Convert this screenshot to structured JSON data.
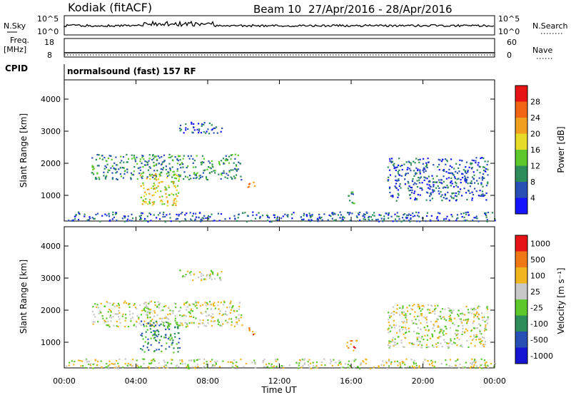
{
  "header": {
    "station": "Kodiak (fitACF)",
    "beam": "Beam 10",
    "dates": "27/Apr/2016 - 28/Apr/2016"
  },
  "summary": {
    "nsky_label": "N.Sky",
    "nsky_ticks": [
      "10^5",
      "10^0"
    ],
    "nsearch_label": "N.Search",
    "nsearch_ticks": [
      "10^5",
      "10^0"
    ],
    "freq_label_1": "Freq.",
    "freq_label_2": "[MHz]",
    "freq_ticks": [
      "18",
      "8"
    ],
    "nave_label": "Nave",
    "nave_ticks": [
      "60",
      "0"
    ],
    "cpid_label": "CPID",
    "cpid_value": "normalsound (fast) 157 RF"
  },
  "chart_data": [
    {
      "type": "heatmap",
      "parameter": "power",
      "ylabel": "Slant Range [km]",
      "yticks": [
        1000,
        2000,
        3000,
        4000
      ],
      "ylim": [
        200,
        4600
      ],
      "xticks": [
        "00:00",
        "04:00",
        "08:00",
        "12:00",
        "16:00",
        "20:00",
        "00:00"
      ],
      "xlim_hours": [
        0,
        24
      ],
      "colorbar_label": "Power [dB]",
      "colorbar_ticks": [
        "4",
        "8",
        "12",
        "16",
        "20",
        "24",
        "28"
      ],
      "colors": [
        "#1414ff",
        "#2850b4",
        "#2c8c5a",
        "#5cc82c",
        "#e6dc28",
        "#f0a01e",
        "#f06414",
        "#e61414"
      ],
      "regions": [
        {
          "t": [
            1.5,
            9.9
          ],
          "range": [
            1500,
            2300
          ],
          "level": 2,
          "note": "main band"
        },
        {
          "t": [
            4.2,
            6.4
          ],
          "range": [
            700,
            1700
          ],
          "level": 4,
          "note": "hook"
        },
        {
          "t": [
            6.4,
            8.8
          ],
          "range": [
            2950,
            3300
          ],
          "level": 1
        },
        {
          "t": [
            10.2,
            10.6
          ],
          "range": [
            1250,
            1550
          ],
          "level": 5
        },
        {
          "t": [
            15.7,
            16.3
          ],
          "range": [
            750,
            1150
          ],
          "level": 2
        },
        {
          "t": [
            18.0,
            23.6
          ],
          "range": [
            850,
            2200
          ],
          "level": 1
        },
        {
          "t": [
            0,
            24
          ],
          "range": [
            200,
            500
          ],
          "level": 1,
          "note": "ground scatter"
        }
      ]
    },
    {
      "type": "heatmap",
      "parameter": "velocity",
      "ylabel": "Slant Range [km]",
      "yticks": [
        1000,
        2000,
        3000,
        4000
      ],
      "ylim": [
        200,
        4600
      ],
      "xticks": [
        "00:00",
        "04:00",
        "08:00",
        "12:00",
        "16:00",
        "20:00",
        "00:00"
      ],
      "xlim_hours": [
        0,
        24
      ],
      "xlabel": "Time UT",
      "colorbar_label": "Velocity [m s⁻¹]",
      "colorbar_ticks": [
        "1000",
        "500",
        "100",
        "25",
        "-25",
        "-100",
        "-500",
        "-1000"
      ],
      "colors": [
        "#1414d2",
        "#2850b4",
        "#2c8c5a",
        "#5cc82c",
        "#c8c8c8",
        "#f0b41e",
        "#f07814",
        "#e61414"
      ],
      "regions": [
        {
          "t": [
            1.5,
            9.9
          ],
          "range": [
            1500,
            2300
          ],
          "level": 4,
          "note": "main band grey"
        },
        {
          "t": [
            4.2,
            6.4
          ],
          "range": [
            700,
            1700
          ],
          "level": 2,
          "note": "hook green"
        },
        {
          "t": [
            6.4,
            8.8
          ],
          "range": [
            2950,
            3300
          ],
          "level": 4
        },
        {
          "t": [
            10.2,
            10.6
          ],
          "range": [
            1250,
            1550
          ],
          "level": 6
        },
        {
          "t": [
            15.7,
            16.3
          ],
          "range": [
            750,
            1150
          ],
          "level": 6
        },
        {
          "t": [
            18.0,
            23.6
          ],
          "range": [
            850,
            2200
          ],
          "level": 4
        },
        {
          "t": [
            0,
            24
          ],
          "range": [
            200,
            500
          ],
          "level": 4,
          "note": "ground scatter"
        }
      ]
    }
  ]
}
